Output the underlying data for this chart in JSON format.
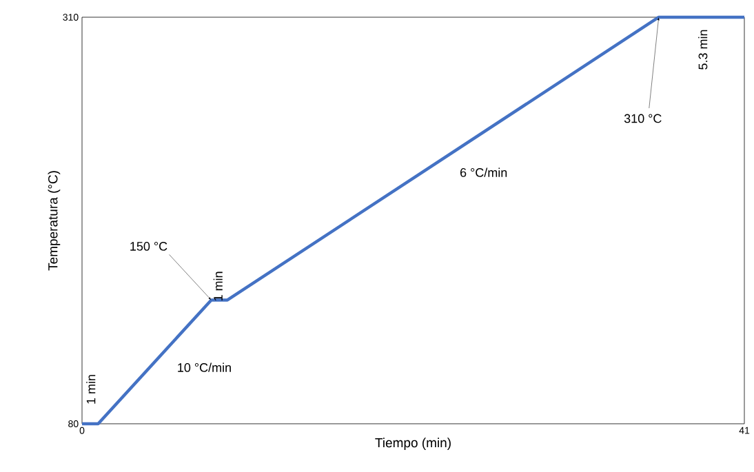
{
  "chart_data": {
    "type": "line",
    "xlabel": "Tiempo (min)",
    "ylabel": "Temperatura (°C)",
    "x": [
      0,
      1,
      8,
      9,
      35.7,
      41
    ],
    "series": [
      {
        "color": "#4472c4",
        "values": [
          80,
          80,
          150,
          150,
          310,
          310
        ]
      }
    ],
    "xlim": [
      0,
      41
    ],
    "ylim": [
      80,
      310
    ],
    "xticks": [
      0,
      41
    ],
    "yticks": [
      80,
      310
    ],
    "grid": false,
    "marker": "none",
    "line_style": "solid",
    "annotations": [
      {
        "text": "1 min",
        "x": 0.5,
        "y": 80
      },
      {
        "text": "10 °C/min",
        "x": 4.5,
        "y": 115
      },
      {
        "text": "150 °C",
        "x": 8,
        "y": 150
      },
      {
        "text": "1 min",
        "x": 8.5,
        "y": 150
      },
      {
        "text": "6 °C/min",
        "x": 22.3,
        "y": 230
      },
      {
        "text": "310 °C",
        "x": 35.7,
        "y": 310
      },
      {
        "text": "5.3 min",
        "x": 38.3,
        "y": 310
      }
    ]
  }
}
